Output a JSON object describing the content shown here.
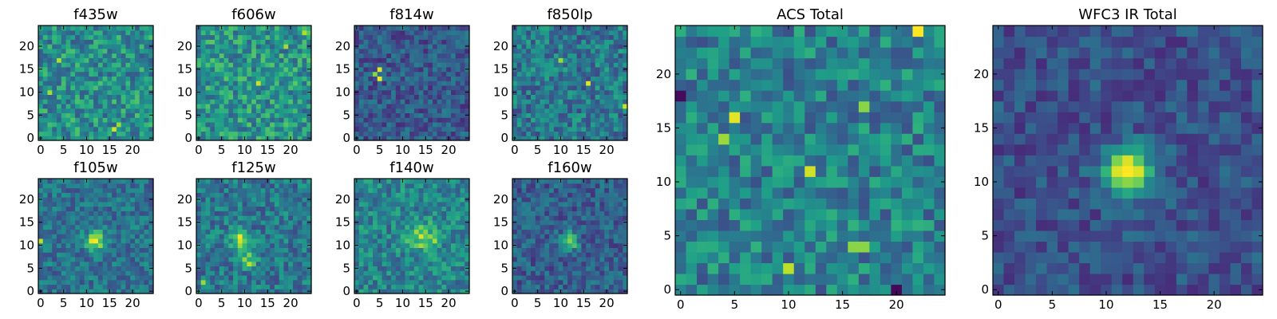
{
  "chart_data": [
    {
      "type": "heatmap",
      "title": "f435w",
      "xticks": [
        0,
        5,
        10,
        15,
        20
      ],
      "yticks": [
        0,
        5,
        10,
        15,
        20
      ],
      "xlim": [
        -0.5,
        24.5
      ],
      "ylim": [
        -0.5,
        24.5
      ],
      "grid_size": 25,
      "colormap": "viridis",
      "seed": 11,
      "noise": {
        "mean": 0.5,
        "amp": 0.22
      },
      "peaks": [],
      "hotspots": [
        {
          "x": 16,
          "y": 2,
          "v": 0.92
        },
        {
          "x": 4,
          "y": 17,
          "v": 0.88
        },
        {
          "x": 17,
          "y": 3,
          "v": 0.85
        },
        {
          "x": 2,
          "y": 10,
          "v": 0.86
        }
      ]
    },
    {
      "type": "heatmap",
      "title": "f606w",
      "xticks": [
        0,
        5,
        10,
        15,
        20
      ],
      "yticks": [
        0,
        5,
        10,
        15,
        20
      ],
      "xlim": [
        -0.5,
        24.5
      ],
      "ylim": [
        -0.5,
        24.5
      ],
      "grid_size": 25,
      "colormap": "viridis",
      "seed": 23,
      "noise": {
        "mean": 0.52,
        "amp": 0.22
      },
      "peaks": [],
      "hotspots": [
        {
          "x": 13,
          "y": 12,
          "v": 0.92
        },
        {
          "x": 23,
          "y": 23,
          "v": 0.88
        },
        {
          "x": 19,
          "y": 20,
          "v": 0.86
        }
      ]
    },
    {
      "type": "heatmap",
      "title": "f814w",
      "xticks": [
        0,
        5,
        10,
        15,
        20
      ],
      "yticks": [
        0,
        5,
        10,
        15,
        20
      ],
      "xlim": [
        -0.5,
        24.5
      ],
      "ylim": [
        -0.5,
        24.5
      ],
      "grid_size": 25,
      "colormap": "viridis",
      "seed": 37,
      "noise": {
        "mean": 0.28,
        "amp": 0.16
      },
      "peaks": [],
      "hotspots": [
        {
          "x": 5,
          "y": 13,
          "v": 0.98
        },
        {
          "x": 5,
          "y": 15,
          "v": 0.95
        },
        {
          "x": 4,
          "y": 14,
          "v": 0.82
        }
      ]
    },
    {
      "type": "heatmap",
      "title": "f850lp",
      "xticks": [
        0,
        5,
        10,
        15,
        20
      ],
      "yticks": [
        0,
        5,
        10,
        15,
        20
      ],
      "xlim": [
        -0.5,
        24.5
      ],
      "ylim": [
        -0.5,
        24.5
      ],
      "grid_size": 25,
      "colormap": "viridis",
      "seed": 41,
      "noise": {
        "mean": 0.4,
        "amp": 0.2
      },
      "peaks": [],
      "hotspots": [
        {
          "x": 16,
          "y": 12,
          "v": 0.96
        },
        {
          "x": 24,
          "y": 7,
          "v": 0.92
        },
        {
          "x": 10,
          "y": 17,
          "v": 0.85
        }
      ]
    },
    {
      "type": "heatmap",
      "title": "f105w",
      "xticks": [
        0,
        5,
        10,
        15,
        20
      ],
      "yticks": [
        0,
        5,
        10,
        15,
        20
      ],
      "xlim": [
        -0.5,
        24.5
      ],
      "ylim": [
        -0.5,
        24.5
      ],
      "grid_size": 25,
      "colormap": "viridis",
      "seed": 53,
      "noise": {
        "mean": 0.38,
        "amp": 0.16
      },
      "peaks": [
        {
          "x": 12,
          "y": 11,
          "amp": 0.55,
          "sigma": 1.4
        }
      ],
      "hotspots": [
        {
          "x": 0,
          "y": 11,
          "v": 0.9
        }
      ]
    },
    {
      "type": "heatmap",
      "title": "f125w",
      "xticks": [
        0,
        5,
        10,
        15,
        20
      ],
      "yticks": [
        0,
        5,
        10,
        15,
        20
      ],
      "xlim": [
        -0.5,
        24.5
      ],
      "ylim": [
        -0.5,
        24.5
      ],
      "grid_size": 25,
      "colormap": "viridis",
      "seed": 67,
      "noise": {
        "mean": 0.4,
        "amp": 0.18
      },
      "peaks": [
        {
          "x": 9,
          "y": 11,
          "amp": 0.4,
          "sigma": 1.5
        },
        {
          "x": 11,
          "y": 7,
          "amp": 0.35,
          "sigma": 1.2
        }
      ],
      "hotspots": [
        {
          "x": 9,
          "y": 12,
          "v": 0.98
        },
        {
          "x": 11,
          "y": 6,
          "v": 0.9
        },
        {
          "x": 1,
          "y": 2,
          "v": 0.85
        }
      ]
    },
    {
      "type": "heatmap",
      "title": "f140w",
      "xticks": [
        0,
        5,
        10,
        15,
        20
      ],
      "yticks": [
        0,
        5,
        10,
        15,
        20
      ],
      "xlim": [
        -0.5,
        24.5
      ],
      "ylim": [
        -0.5,
        24.5
      ],
      "grid_size": 25,
      "colormap": "viridis",
      "seed": 79,
      "noise": {
        "mean": 0.45,
        "amp": 0.18
      },
      "peaks": [
        {
          "x": 14,
          "y": 12,
          "amp": 0.4,
          "sigma": 2.0
        }
      ],
      "hotspots": [
        {
          "x": 14,
          "y": 12,
          "v": 0.95
        },
        {
          "x": 17,
          "y": 11,
          "v": 0.86
        }
      ]
    },
    {
      "type": "heatmap",
      "title": "f160w",
      "xticks": [
        0,
        5,
        10,
        15,
        20
      ],
      "yticks": [
        0,
        5,
        10,
        15,
        20
      ],
      "xlim": [
        -0.5,
        24.5
      ],
      "ylim": [
        -0.5,
        24.5
      ],
      "grid_size": 25,
      "colormap": "viridis",
      "seed": 83,
      "noise": {
        "mean": 0.3,
        "amp": 0.16
      },
      "peaks": [
        {
          "x": 12,
          "y": 11,
          "amp": 0.6,
          "sigma": 1.2
        }
      ],
      "hotspots": []
    },
    {
      "type": "heatmap",
      "title": "ACS Total",
      "xticks": [
        0,
        5,
        10,
        15,
        20
      ],
      "yticks": [
        0,
        5,
        10,
        15,
        20
      ],
      "xlim": [
        -0.5,
        24.5
      ],
      "ylim": [
        -0.5,
        24.5
      ],
      "grid_size": 25,
      "colormap": "viridis",
      "seed": 97,
      "noise": {
        "mean": 0.44,
        "amp": 0.2
      },
      "peaks": [],
      "hotspots": [
        {
          "x": 22,
          "y": 24,
          "v": 1.0
        },
        {
          "x": 5,
          "y": 16,
          "v": 0.96
        },
        {
          "x": 12,
          "y": 11,
          "v": 0.93
        },
        {
          "x": 10,
          "y": 2,
          "v": 0.9
        },
        {
          "x": 16,
          "y": 4,
          "v": 0.82
        },
        {
          "x": 17,
          "y": 4,
          "v": 0.82
        },
        {
          "x": 17,
          "y": 17,
          "v": 0.82
        },
        {
          "x": 4,
          "y": 14,
          "v": 0.85
        },
        {
          "x": 20,
          "y": 0,
          "v": 0.02
        },
        {
          "x": 0,
          "y": 18,
          "v": 0.03
        }
      ]
    },
    {
      "type": "heatmap",
      "title": "WFC3 IR Total",
      "xticks": [
        0,
        5,
        10,
        15,
        20
      ],
      "yticks": [
        0,
        5,
        10,
        15,
        20
      ],
      "xlim": [
        -0.5,
        24.5
      ],
      "ylim": [
        -0.5,
        24.5
      ],
      "grid_size": 25,
      "colormap": "viridis",
      "seed": 101,
      "noise": {
        "mean": 0.25,
        "amp": 0.13
      },
      "peaks": [
        {
          "x": 12,
          "y": 11,
          "amp": 0.7,
          "sigma": 1.6
        }
      ],
      "hotspots": []
    }
  ]
}
